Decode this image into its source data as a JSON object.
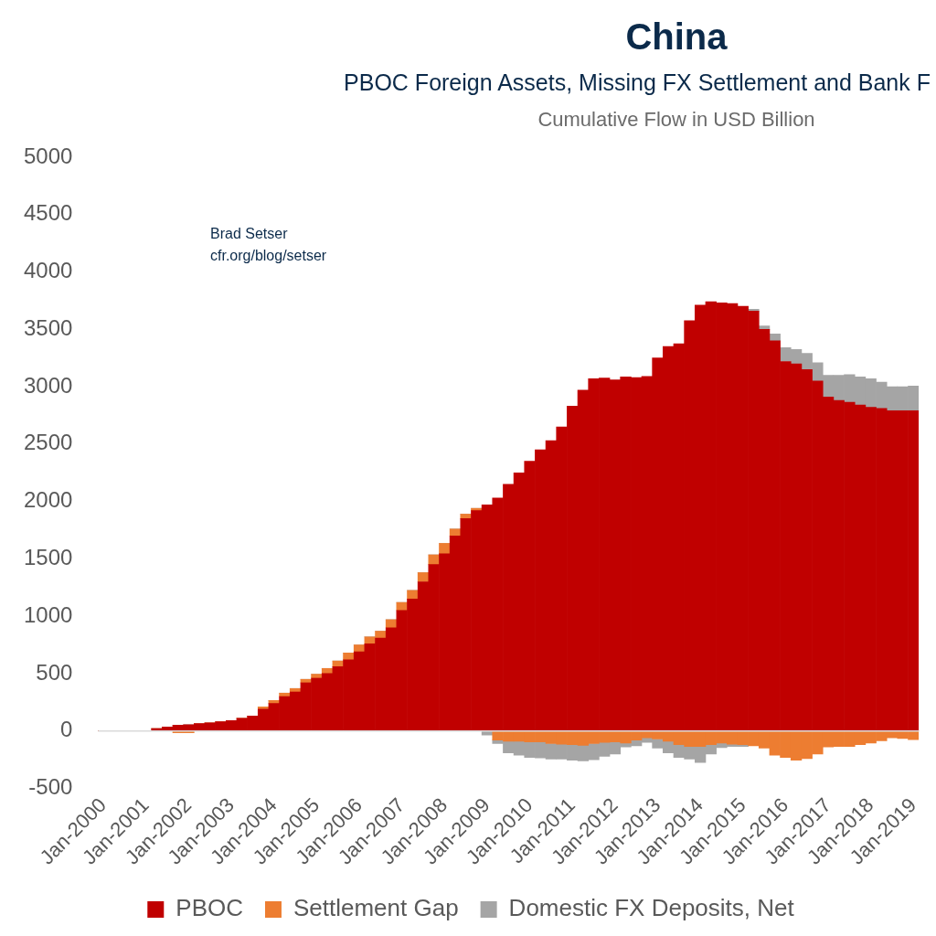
{
  "chart_data": {
    "type": "bar",
    "title": "China",
    "subtitle": "PBOC Foreign Assets, Missing FX Settlement and Bank F",
    "ylabel": "Cumulative Flow in USD Billion",
    "annotations": [
      "Brad Setser",
      "cfr.org/blog/setser"
    ],
    "stacked": true,
    "legend": "bottom",
    "ylim": [
      -500,
      5000
    ],
    "yticks": [
      -500,
      0,
      500,
      1000,
      1500,
      2000,
      2500,
      3000,
      3500,
      4000,
      4500,
      5000
    ],
    "categories": [
      "Jan-2000",
      null,
      null,
      null,
      "Jan-2001",
      null,
      null,
      null,
      "Jan-2002",
      null,
      null,
      null,
      "Jan-2003",
      null,
      null,
      null,
      "Jan-2004",
      null,
      null,
      null,
      "Jan-2005",
      null,
      null,
      null,
      "Jan-2006",
      null,
      null,
      null,
      "Jan-2007",
      null,
      null,
      null,
      "Jan-2008",
      null,
      null,
      null,
      "Jan-2009",
      null,
      null,
      null,
      "Jan-2010",
      null,
      null,
      null,
      "Jan-2011",
      null,
      null,
      null,
      "Jan-2012",
      null,
      null,
      null,
      "Jan-2013",
      null,
      null,
      null,
      "Jan-2014",
      null,
      null,
      null,
      "Jan-2015",
      null,
      null,
      null,
      "Jan-2016",
      null,
      null,
      null,
      "Jan-2017",
      null,
      null,
      null,
      "Jan-2018",
      null,
      null,
      null,
      "Jan-2019"
    ],
    "series": [
      {
        "name": "PBOC",
        "color": "#c00000",
        "values": [
          0,
          0,
          0,
          0,
          null,
          20,
          35,
          50,
          55,
          65,
          70,
          80,
          90,
          110,
          130,
          190,
          240,
          300,
          340,
          420,
          460,
          500,
          560,
          620,
          690,
          760,
          810,
          900,
          1050,
          1150,
          1300,
          1450,
          1545,
          1700,
          1850,
          1920,
          1970,
          2030,
          2150,
          2250,
          2350,
          2450,
          2530,
          2650,
          2830,
          2970,
          3070,
          3075,
          3060,
          3085,
          3080,
          3090,
          3250,
          3350,
          3375,
          3575,
          3710,
          3740,
          3730,
          3725,
          3700,
          3660,
          3500,
          3400,
          3220,
          3200,
          3150,
          3050,
          2910,
          2880,
          2865,
          2840,
          2820,
          2810,
          2790,
          2790,
          2790
        ]
      },
      {
        "name": "Settlement Gap",
        "color": "#ed7d31",
        "values": [
          0,
          0,
          0,
          0,
          0,
          0,
          0,
          -15,
          -15,
          0,
          0,
          0,
          0,
          0,
          0,
          20,
          25,
          30,
          30,
          30,
          35,
          45,
          50,
          60,
          60,
          60,
          60,
          70,
          70,
          75,
          80,
          85,
          90,
          60,
          40,
          20,
          null,
          -80,
          -90,
          -90,
          -95,
          -95,
          -110,
          -115,
          -120,
          -125,
          -110,
          -100,
          -95,
          -105,
          -80,
          -60,
          -70,
          -90,
          -120,
          -135,
          -135,
          -120,
          -105,
          -115,
          -120,
          -130,
          -150,
          -210,
          -230,
          -255,
          -240,
          -200,
          -140,
          -135,
          -135,
          -120,
          -105,
          -85,
          -60,
          -65,
          -75
        ]
      },
      {
        "name": "Domestic FX Deposits, Net",
        "color": "#a5a5a5",
        "values": [
          0,
          0,
          0,
          0,
          0,
          0,
          0,
          0,
          0,
          0,
          0,
          0,
          0,
          0,
          0,
          0,
          0,
          0,
          0,
          0,
          0,
          0,
          0,
          0,
          0,
          0,
          0,
          0,
          0,
          0,
          0,
          0,
          0,
          0,
          0,
          0,
          -35,
          -30,
          -100,
          -120,
          -135,
          -140,
          -135,
          -130,
          -135,
          -135,
          -140,
          -120,
          -105,
          -35,
          -50,
          -40,
          -80,
          -100,
          -110,
          -110,
          -140,
          -80,
          -40,
          -20,
          -15,
          15,
          30,
          60,
          120,
          125,
          140,
          160,
          190,
          220,
          240,
          245,
          250,
          230,
          210,
          210,
          215
        ]
      }
    ]
  }
}
